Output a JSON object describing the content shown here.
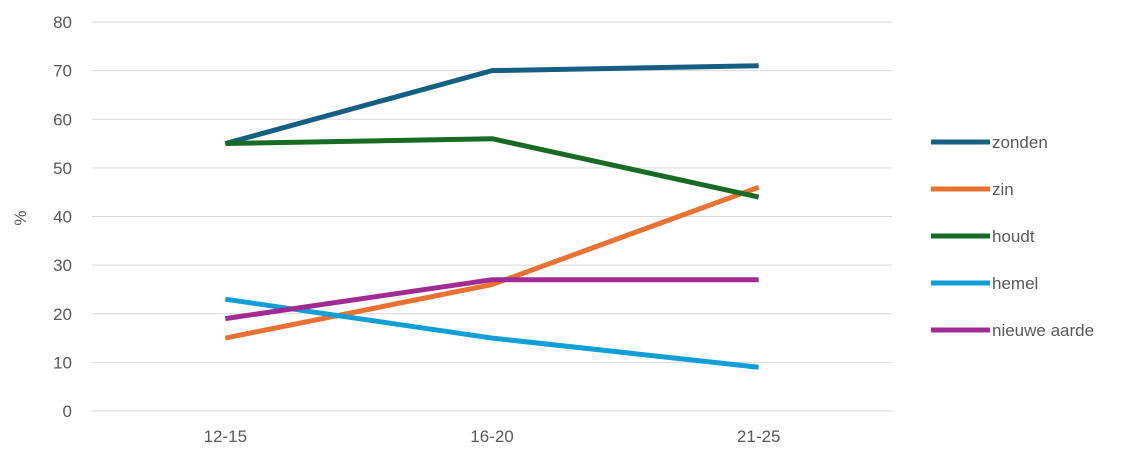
{
  "chart_data": {
    "type": "line",
    "title": "",
    "xlabel": "",
    "ylabel": "%",
    "categories": [
      "12-15",
      "16-20",
      "21-25"
    ],
    "ylim": [
      0,
      80
    ],
    "yticks": [
      0,
      10,
      20,
      30,
      40,
      50,
      60,
      70,
      80
    ],
    "grid": true,
    "legend": "right",
    "series": [
      {
        "name": "zonden",
        "color": "#156082",
        "values": [
          55,
          70,
          71
        ]
      },
      {
        "name": "zin",
        "color": "#e97132",
        "values": [
          15,
          26,
          46
        ]
      },
      {
        "name": "houdt",
        "color": "#196b24",
        "values": [
          55,
          56,
          44
        ]
      },
      {
        "name": "hemel",
        "color": "#0f9ed5",
        "values": [
          23,
          15,
          9
        ]
      },
      {
        "name": "nieuwe aarde",
        "color": "#a02b93",
        "values": [
          19,
          27,
          27
        ]
      }
    ]
  }
}
